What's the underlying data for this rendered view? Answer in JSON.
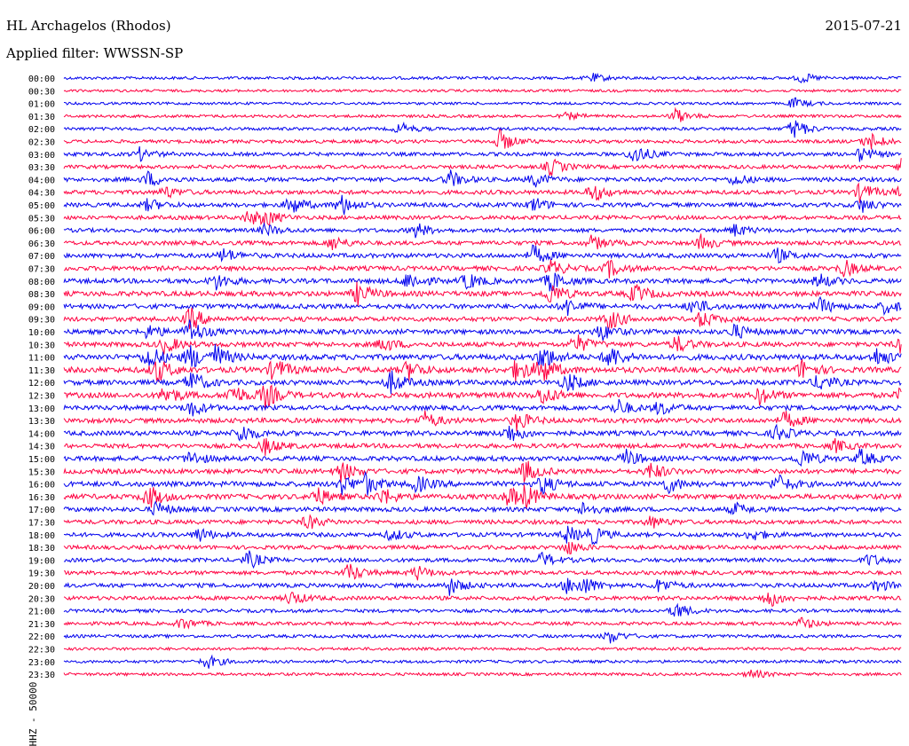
{
  "header": {
    "station": "HL Archagelos (Rhodos)",
    "date": "2015-07-21",
    "filter": "Applied filter: WWSSN-SP"
  },
  "chart_data": {
    "type": "line",
    "title": "HL Archagelos (Rhodos)",
    "ylabel": "HHZ - 50000",
    "xlabel": "",
    "grid": false,
    "series_colors": [
      "#0000ee",
      "#ff0040"
    ],
    "rows": [
      {
        "label": "00:00",
        "level": 0.2,
        "events": [
          [
            0.63,
            0.35
          ],
          [
            0.88,
            0.4
          ]
        ]
      },
      {
        "label": "00:30",
        "level": 0.15,
        "events": []
      },
      {
        "label": "01:00",
        "level": 0.15,
        "events": [
          [
            0.87,
            0.45
          ]
        ]
      },
      {
        "label": "01:30",
        "level": 0.2,
        "events": [
          [
            0.6,
            0.3
          ],
          [
            0.73,
            0.6
          ]
        ]
      },
      {
        "label": "02:00",
        "level": 0.25,
        "events": [
          [
            0.4,
            0.5
          ],
          [
            0.87,
            0.9
          ]
        ]
      },
      {
        "label": "02:30",
        "level": 0.3,
        "events": [
          [
            0.52,
            0.9
          ],
          [
            0.96,
            0.8
          ]
        ]
      },
      {
        "label": "03:00",
        "level": 0.35,
        "events": [
          [
            0.09,
            0.5
          ],
          [
            0.68,
            0.9
          ],
          [
            0.95,
            0.6
          ]
        ]
      },
      {
        "label": "03:30",
        "level": 0.35,
        "events": [
          [
            0.58,
            0.7
          ],
          [
            1.0,
            0.7
          ]
        ]
      },
      {
        "label": "04:00",
        "level": 0.45,
        "events": [
          [
            0.1,
            0.6
          ],
          [
            0.46,
            0.7
          ],
          [
            0.56,
            0.6
          ],
          [
            0.8,
            0.5
          ]
        ]
      },
      {
        "label": "04:30",
        "level": 0.45,
        "events": [
          [
            0.12,
            0.5
          ],
          [
            0.63,
            0.8
          ],
          [
            0.95,
            0.8
          ],
          [
            1.0,
            0.8
          ]
        ]
      },
      {
        "label": "05:00",
        "level": 0.45,
        "events": [
          [
            0.1,
            0.5
          ],
          [
            0.27,
            0.8
          ],
          [
            0.33,
            0.9
          ],
          [
            0.56,
            0.6
          ],
          [
            0.95,
            0.6
          ]
        ]
      },
      {
        "label": "05:30",
        "level": 0.4,
        "events": [
          [
            0.22,
            0.6
          ],
          [
            0.24,
            0.6
          ]
        ]
      },
      {
        "label": "06:00",
        "level": 0.4,
        "events": [
          [
            0.24,
            0.5
          ],
          [
            0.42,
            0.6
          ],
          [
            0.8,
            0.5
          ]
        ]
      },
      {
        "label": "06:30",
        "level": 0.45,
        "events": [
          [
            0.32,
            0.6
          ],
          [
            0.63,
            0.6
          ],
          [
            0.76,
            0.6
          ]
        ]
      },
      {
        "label": "07:00",
        "level": 0.5,
        "events": [
          [
            0.19,
            0.6
          ],
          [
            0.56,
            0.8
          ],
          [
            0.85,
            0.6
          ]
        ]
      },
      {
        "label": "07:30",
        "level": 0.5,
        "events": [
          [
            0.58,
            0.7
          ],
          [
            0.65,
            0.7
          ],
          [
            0.93,
            0.7
          ]
        ]
      },
      {
        "label": "08:00",
        "level": 0.55,
        "events": [
          [
            0.18,
            0.7
          ],
          [
            0.41,
            0.8
          ],
          [
            0.48,
            0.7
          ],
          [
            0.58,
            0.9
          ],
          [
            0.9,
            0.6
          ]
        ]
      },
      {
        "label": "08:30",
        "level": 0.6,
        "events": [
          [
            0.35,
            0.9
          ],
          [
            0.58,
            0.9
          ],
          [
            0.68,
            0.8
          ]
        ]
      },
      {
        "label": "09:00",
        "level": 0.55,
        "events": [
          [
            0.6,
            0.7
          ],
          [
            0.75,
            0.7
          ],
          [
            0.9,
            0.7
          ],
          [
            0.98,
            0.6
          ]
        ]
      },
      {
        "label": "09:30",
        "level": 0.5,
        "events": [
          [
            0.15,
            1.0
          ],
          [
            0.65,
            0.9
          ],
          [
            0.76,
            0.7
          ]
        ]
      },
      {
        "label": "10:00",
        "level": 0.55,
        "events": [
          [
            0.1,
            0.6
          ],
          [
            0.15,
            1.0
          ],
          [
            0.64,
            0.7
          ],
          [
            0.8,
            0.6
          ]
        ]
      },
      {
        "label": "10:30",
        "level": 0.55,
        "events": [
          [
            0.12,
            0.7
          ],
          [
            0.38,
            0.6
          ],
          [
            0.61,
            0.8
          ],
          [
            0.73,
            0.7
          ],
          [
            1.0,
            0.9
          ]
        ]
      },
      {
        "label": "11:00",
        "level": 0.7,
        "events": [
          [
            0.1,
            1.0
          ],
          [
            0.15,
            1.0
          ],
          [
            0.18,
            0.9
          ],
          [
            0.57,
            1.0
          ],
          [
            0.65,
            1.0
          ],
          [
            0.97,
            0.7
          ]
        ]
      },
      {
        "label": "11:30",
        "level": 0.7,
        "events": [
          [
            0.11,
            1.0
          ],
          [
            0.25,
            1.0
          ],
          [
            0.41,
            0.8
          ],
          [
            0.54,
            1.0
          ],
          [
            0.57,
            1.0
          ],
          [
            0.88,
            0.8
          ]
        ]
      },
      {
        "label": "12:00",
        "level": 0.6,
        "events": [
          [
            0.15,
            1.0
          ],
          [
            0.39,
            0.9
          ],
          [
            0.6,
            0.8
          ],
          [
            0.9,
            0.7
          ]
        ]
      },
      {
        "label": "12:30",
        "level": 0.65,
        "events": [
          [
            0.12,
            0.8
          ],
          [
            0.2,
            0.9
          ],
          [
            0.24,
            1.0
          ],
          [
            0.57,
            0.8
          ],
          [
            0.83,
            0.7
          ],
          [
            1.0,
            0.8
          ]
        ]
      },
      {
        "label": "13:00",
        "level": 0.55,
        "events": [
          [
            0.15,
            0.7
          ],
          [
            0.66,
            0.7
          ],
          [
            0.71,
            0.6
          ]
        ]
      },
      {
        "label": "13:30",
        "level": 0.55,
        "events": [
          [
            0.43,
            0.7
          ],
          [
            0.54,
            0.8
          ],
          [
            0.86,
            0.7
          ]
        ]
      },
      {
        "label": "14:00",
        "level": 0.55,
        "events": [
          [
            0.21,
            0.8
          ],
          [
            0.53,
            0.8
          ],
          [
            0.85,
            0.6
          ]
        ]
      },
      {
        "label": "14:30",
        "level": 0.5,
        "events": [
          [
            0.24,
            0.7
          ],
          [
            0.92,
            0.5
          ]
        ]
      },
      {
        "label": "15:00",
        "level": 0.55,
        "events": [
          [
            0.15,
            0.6
          ],
          [
            0.67,
            0.7
          ],
          [
            0.88,
            0.8
          ],
          [
            0.95,
            0.7
          ]
        ]
      },
      {
        "label": "15:30",
        "level": 0.55,
        "events": [
          [
            0.33,
            0.8
          ],
          [
            0.55,
            0.9
          ],
          [
            0.7,
            0.7
          ]
        ]
      },
      {
        "label": "16:00",
        "level": 0.6,
        "events": [
          [
            0.33,
            0.8
          ],
          [
            0.36,
            0.8
          ],
          [
            0.42,
            0.7
          ],
          [
            0.57,
            0.8
          ],
          [
            0.72,
            0.7
          ],
          [
            0.85,
            0.8
          ]
        ]
      },
      {
        "label": "16:30",
        "level": 0.6,
        "events": [
          [
            0.1,
            1.0
          ],
          [
            0.3,
            0.8
          ],
          [
            0.38,
            0.7
          ],
          [
            0.53,
            0.8
          ],
          [
            0.55,
            0.8
          ]
        ]
      },
      {
        "label": "17:00",
        "level": 0.5,
        "events": [
          [
            0.11,
            0.6
          ],
          [
            0.62,
            0.6
          ],
          [
            0.8,
            0.5
          ]
        ]
      },
      {
        "label": "17:30",
        "level": 0.45,
        "events": [
          [
            0.29,
            0.6
          ],
          [
            0.7,
            0.5
          ]
        ]
      },
      {
        "label": "18:00",
        "level": 0.45,
        "events": [
          [
            0.16,
            0.6
          ],
          [
            0.39,
            0.5
          ],
          [
            0.6,
            0.7
          ],
          [
            0.63,
            0.7
          ],
          [
            0.82,
            0.5
          ]
        ]
      },
      {
        "label": "18:30",
        "level": 0.4,
        "events": [
          [
            0.6,
            0.6
          ]
        ]
      },
      {
        "label": "19:00",
        "level": 0.4,
        "events": [
          [
            0.22,
            0.7
          ],
          [
            0.57,
            0.6
          ],
          [
            0.96,
            0.5
          ]
        ]
      },
      {
        "label": "19:30",
        "level": 0.4,
        "events": [
          [
            0.34,
            0.8
          ],
          [
            0.42,
            0.6
          ]
        ]
      },
      {
        "label": "20:00",
        "level": 0.45,
        "events": [
          [
            0.46,
            0.7
          ],
          [
            0.6,
            0.6
          ],
          [
            0.62,
            0.6
          ],
          [
            0.71,
            0.6
          ],
          [
            0.97,
            0.5
          ]
        ]
      },
      {
        "label": "20:30",
        "level": 0.4,
        "events": [
          [
            0.27,
            0.6
          ],
          [
            0.84,
            0.8
          ]
        ]
      },
      {
        "label": "21:00",
        "level": 0.3,
        "events": [
          [
            0.73,
            0.7
          ]
        ]
      },
      {
        "label": "21:30",
        "level": 0.3,
        "events": [
          [
            0.14,
            0.5
          ],
          [
            0.88,
            0.5
          ]
        ]
      },
      {
        "label": "22:00",
        "level": 0.25,
        "events": [
          [
            0.65,
            0.6
          ]
        ]
      },
      {
        "label": "22:30",
        "level": 0.2,
        "events": []
      },
      {
        "label": "23:00",
        "level": 0.2,
        "events": [
          [
            0.17,
            0.6
          ]
        ]
      },
      {
        "label": "23:30",
        "level": 0.2,
        "events": [
          [
            0.82,
            0.4
          ]
        ]
      }
    ]
  }
}
